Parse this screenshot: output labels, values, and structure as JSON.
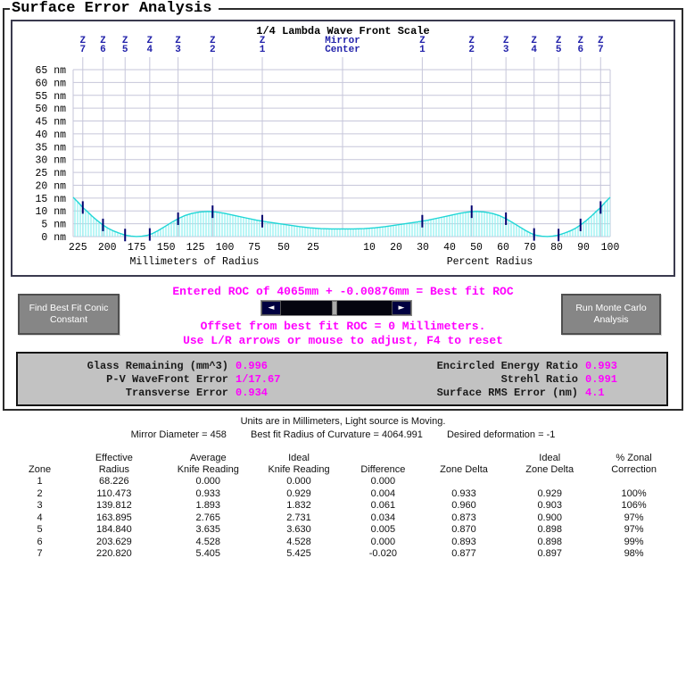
{
  "window": {
    "title": "Surface Error Analysis"
  },
  "chart_data": {
    "type": "area",
    "title": "1/4 Lambda Wave Front Scale",
    "y_axis": {
      "unit": "nm",
      "min": 0,
      "max": 65,
      "step": 5
    },
    "left_x_axis": {
      "label": "Millimeters of Radius",
      "ticks": [
        225,
        200,
        175,
        150,
        125,
        100,
        75,
        50,
        25
      ],
      "full_scale_mm": 229
    },
    "right_x_axis": {
      "label": "Percent Radius",
      "ticks": [
        10,
        20,
        30,
        40,
        50,
        60,
        70,
        80,
        90,
        100
      ]
    },
    "center_label": "Mirror\nCenter",
    "zone_label_prefix": "Z",
    "zone_radii_mm": [
      68.226,
      110.473,
      139.812,
      163.895,
      184.84,
      203.629,
      220.82
    ],
    "profile": {
      "percent_radius": [
        0,
        4,
        8,
        12,
        16,
        20,
        24,
        28,
        29.8,
        32,
        36,
        40,
        44,
        47,
        50,
        53,
        56,
        58.5,
        61,
        63.5,
        66,
        68.5,
        70.5,
        72.5,
        74.5,
        76.5,
        78.5,
        80.7,
        83,
        85,
        87,
        89,
        91,
        93,
        95,
        96.4,
        98,
        100
      ],
      "error_nm": [
        3.0,
        3.0,
        3.1,
        3.4,
        3.9,
        4.5,
        5.1,
        5.7,
        6.0,
        6.4,
        7.3,
        8.2,
        9.1,
        9.6,
        9.8,
        9.6,
        9.0,
        8.2,
        7.0,
        5.5,
        3.9,
        2.3,
        1.2,
        0.5,
        0.15,
        0.05,
        0.2,
        0.6,
        1.4,
        2.2,
        3.2,
        4.6,
        6.2,
        8.0,
        10.0,
        11.3,
        13.2,
        15.3
      ]
    },
    "colors": {
      "curve": "#1fd6d6",
      "hatch": "#8df0f0",
      "grid": "#c6c6da",
      "zone_tick": "#000070",
      "zone_label": "#2222aa"
    }
  },
  "controls": {
    "roc_line": "Entered ROC of 4065mm + -0.00876mm = Best fit ROC",
    "offset_line": "Offset from best fit ROC = 0 Millimeters.",
    "hint_line": "Use L/R arrows or mouse to adjust, F4 to reset",
    "find_conic_button": "Find Best Fit Conic Constant",
    "monte_carlo_button": "Run Monte Carlo Analysis",
    "scroll_left_arrow": "◄",
    "scroll_right_arrow": "►"
  },
  "stats": {
    "rows": [
      {
        "left_label": "Glass Remaining (mm^3)",
        "left_value": "0.996",
        "right_label": "Encircled Energy Ratio",
        "right_value": "0.993"
      },
      {
        "left_label": "P-V WaveFront Error",
        "left_value": "1/17.67",
        "right_label": "Strehl Ratio",
        "right_value": "0.991"
      },
      {
        "left_label": "Transverse Error",
        "left_value": "0.934",
        "right_label": "Surface RMS Error (nm)",
        "right_value": "4.1"
      }
    ]
  },
  "info": {
    "line1": "Units are in Millimeters, Light source is Moving.",
    "mirror_diameter": "Mirror Diameter = 458",
    "best_fit_roc": "Best fit Radius of Curvature = 4064.991",
    "desired_deformation": "Desired deformation = -1"
  },
  "table": {
    "columns": [
      {
        "line1": "",
        "line2": "Zone"
      },
      {
        "line1": "Effective",
        "line2": "Radius"
      },
      {
        "line1": "Average",
        "line2": "Knife Reading"
      },
      {
        "line1": "Ideal",
        "line2": "Knife Reading"
      },
      {
        "line1": "",
        "line2": "Difference"
      },
      {
        "line1": "",
        "line2": "Zone Delta"
      },
      {
        "line1": "Ideal",
        "line2": "Zone Delta"
      },
      {
        "line1": "% Zonal",
        "line2": "Correction"
      }
    ],
    "rows": [
      [
        "1",
        "68.226",
        "0.000",
        "0.000",
        "0.000",
        "",
        "",
        ""
      ],
      [
        "2",
        "110.473",
        "0.933",
        "0.929",
        "0.004",
        "0.933",
        "0.929",
        "100%"
      ],
      [
        "3",
        "139.812",
        "1.893",
        "1.832",
        "0.061",
        "0.960",
        "0.903",
        "106%"
      ],
      [
        "4",
        "163.895",
        "2.765",
        "2.731",
        "0.034",
        "0.873",
        "0.900",
        "97%"
      ],
      [
        "5",
        "184.840",
        "3.635",
        "3.630",
        "0.005",
        "0.870",
        "0.898",
        "97%"
      ],
      [
        "6",
        "203.629",
        "4.528",
        "4.528",
        "0.000",
        "0.893",
        "0.898",
        "99%"
      ],
      [
        "7",
        "220.820",
        "5.405",
        "5.425",
        "-0.020",
        "0.877",
        "0.897",
        "98%"
      ]
    ]
  }
}
